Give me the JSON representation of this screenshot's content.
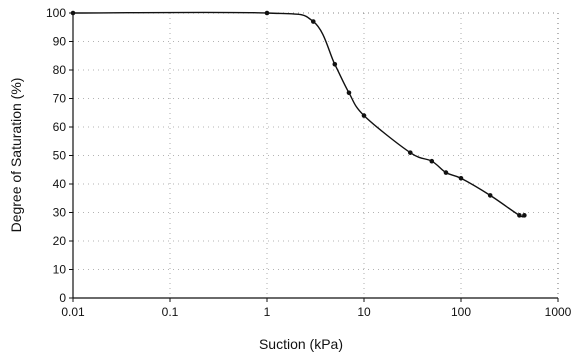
{
  "chart_data": {
    "type": "scatter",
    "title": "",
    "xlabel": "Suction (kPa)",
    "ylabel": "Degree of Saturation (%)",
    "x_scale": "log",
    "xlim": [
      0.01,
      1000
    ],
    "ylim": [
      0,
      100
    ],
    "x_ticks": [
      "0.01",
      "0.1",
      "1",
      "10",
      "100",
      "1000"
    ],
    "y_ticks": [
      "0",
      "10",
      "20",
      "30",
      "40",
      "50",
      "60",
      "70",
      "80",
      "90",
      "100"
    ],
    "grid": true,
    "grid_style": "dotted",
    "legend": "none",
    "colors": {
      "line": "#111111",
      "marker": "#111111",
      "grid": "#9a9a9a",
      "axis": "#111111"
    },
    "series": [
      {
        "x": [
          0.01,
          1,
          3,
          5,
          7,
          10,
          30,
          50,
          70,
          100,
          200,
          400,
          450
        ],
        "y": [
          100,
          100,
          97,
          82,
          72,
          64,
          51,
          48,
          44,
          42,
          36,
          29,
          29
        ],
        "markers": true,
        "smooth": true
      }
    ]
  }
}
